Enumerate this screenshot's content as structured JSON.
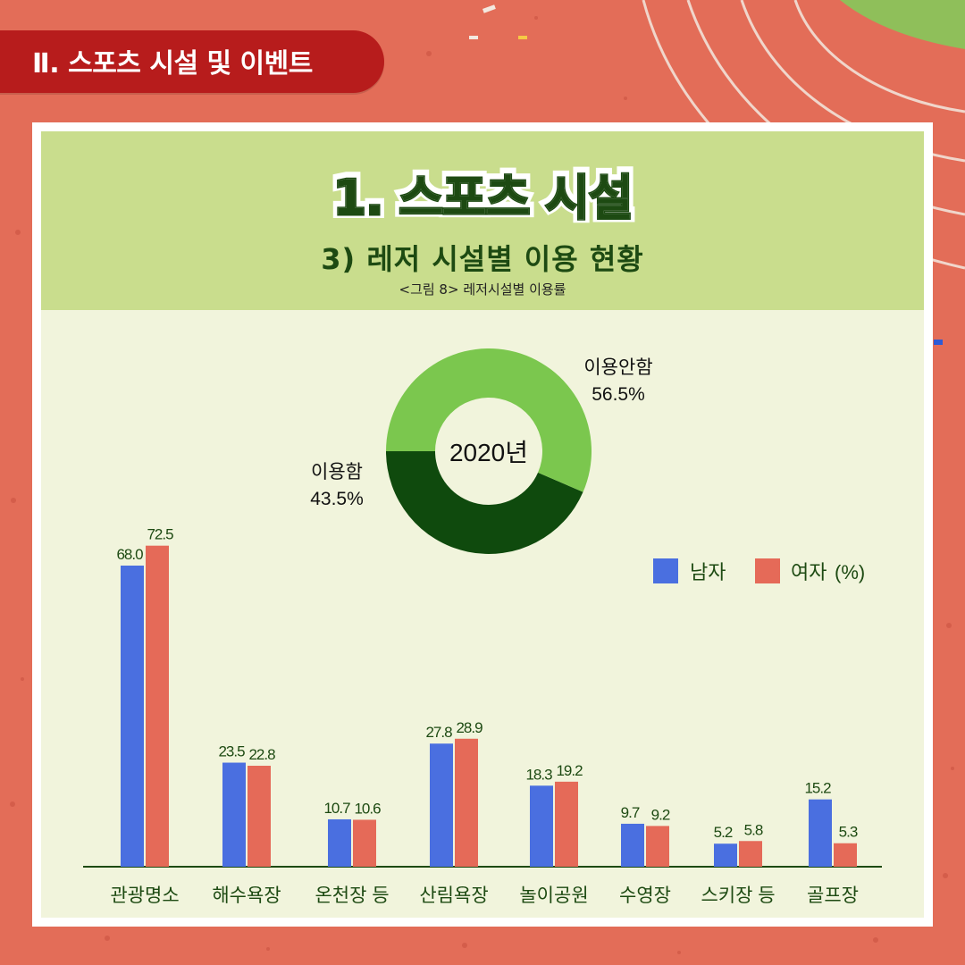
{
  "section_tab": "Ⅱ. 스포츠 시설 및 이벤트",
  "header": {
    "title": "1. 스포츠 시설",
    "subtitle": "3) 레저 시설별 이용 현황",
    "caption": "<그림 8> 레저시설별 이용률"
  },
  "colors": {
    "background": "#e36d58",
    "tab": "#b71c1c",
    "header": "#c9dd8d",
    "panel": "#f1f4dc",
    "title": "#1d4a12",
    "male": "#4a6fe0",
    "female": "#e56a58",
    "donut_use": "#0f4a0d",
    "donut_nonuse": "#7bc74e"
  },
  "chart_data": [
    {
      "type": "pie",
      "center_label": "2020년",
      "slices": [
        {
          "label": "이용안함",
          "value": 56.5,
          "display": "56.5%",
          "color": "#7bc74e"
        },
        {
          "label": "이용함",
          "value": 43.5,
          "display": "43.5%",
          "color": "#0f4a0d"
        }
      ]
    },
    {
      "type": "bar",
      "categories": [
        "관광명소",
        "해수욕장",
        "온천장 등",
        "산림욕장",
        "놀이공원",
        "수영장",
        "스키장 등",
        "골프장"
      ],
      "series": [
        {
          "name": "남자",
          "values": [
            68.0,
            23.5,
            10.7,
            27.8,
            18.3,
            9.7,
            5.2,
            15.2
          ],
          "labels": [
            "68.0",
            "23.5",
            "10.7",
            "27.8",
            "18.3",
            "9.7",
            "5.2",
            "15.2"
          ],
          "color": "#4a6fe0"
        },
        {
          "name": "여자",
          "values": [
            72.5,
            22.8,
            10.6,
            28.9,
            19.2,
            9.2,
            5.8,
            5.3
          ],
          "labels": [
            "72.5",
            "22.8",
            "10.6",
            "28.9",
            "19.2",
            "9.2",
            "5.8",
            "5.3"
          ],
          "color": "#e56a58"
        }
      ],
      "unit": "(%)",
      "ylim": [
        0,
        80
      ],
      "legend_position": "right"
    }
  ]
}
